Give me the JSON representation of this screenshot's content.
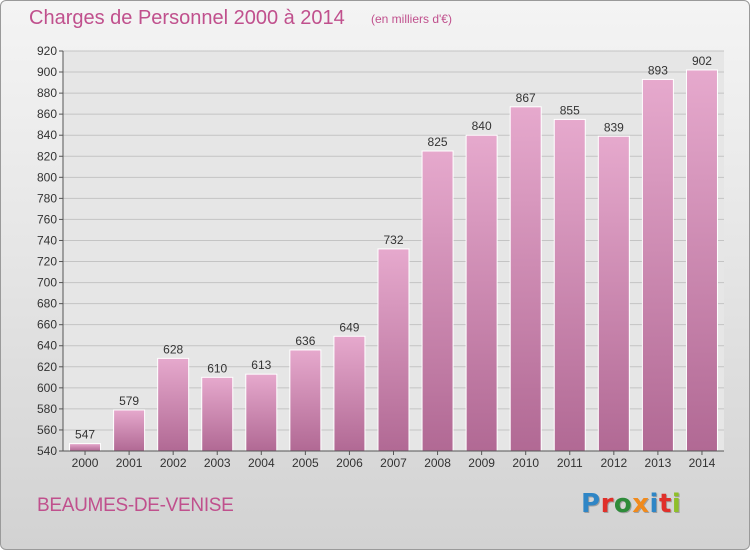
{
  "header": {
    "title": "Charges de Personnel 2000 à 2014",
    "unit_note": "(en milliers d'€)"
  },
  "footer": {
    "commune": "BEAUMES-DE-VENISE",
    "logo_text": "Proxiti"
  },
  "colors": {
    "accent": "#c0508d",
    "bar_top": "#e6a9cd",
    "bar_bottom": "#b16994",
    "logo_letters": [
      "#2f86c6",
      "#e0302a",
      "#2e8b3a",
      "#f08a1c",
      "#2f86c6",
      "#e0302a",
      "#8fbf2a"
    ]
  },
  "chart_data": {
    "type": "bar",
    "title": "Charges de Personnel 2000 à 2014",
    "subtitle": "(en milliers d'€)",
    "categories": [
      "2000",
      "2001",
      "2002",
      "2003",
      "2004",
      "2005",
      "2006",
      "2007",
      "2008",
      "2009",
      "2010",
      "2011",
      "2012",
      "2013",
      "2014"
    ],
    "values": [
      547,
      579,
      628,
      610,
      613,
      636,
      649,
      732,
      825,
      840,
      867,
      855,
      839,
      893,
      902
    ],
    "ylim": [
      540,
      920
    ],
    "yticks": [
      540,
      560,
      580,
      600,
      620,
      640,
      660,
      680,
      700,
      720,
      740,
      760,
      780,
      800,
      820,
      840,
      860,
      880,
      900,
      920
    ],
    "grid": true,
    "data_labels": true
  }
}
